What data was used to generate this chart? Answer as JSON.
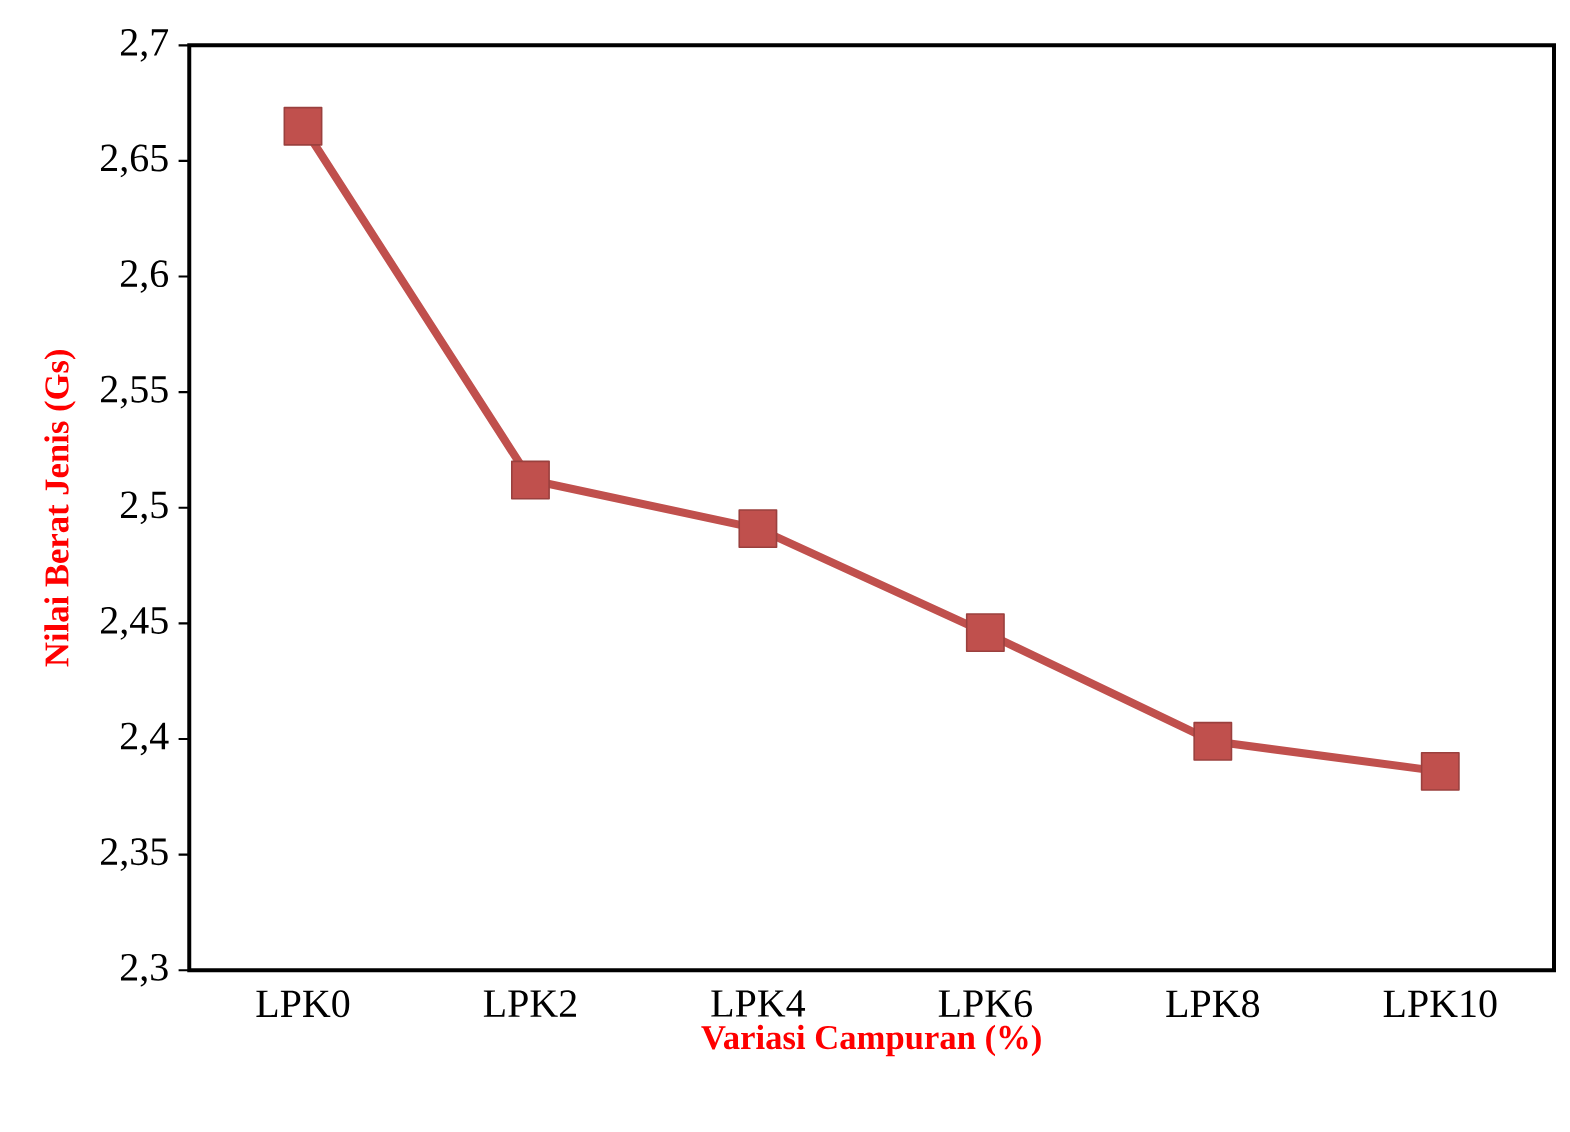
{
  "chart_data": {
    "type": "line",
    "xlabel": "Variasi Campuran (%)",
    "ylabel": "Nilai Berat Jenis (Gs)",
    "categories": [
      "LPK0",
      "LPK2",
      "LPK4",
      "LPK6",
      "LPK8",
      "LPK10"
    ],
    "values": [
      2.665,
      2.512,
      2.491,
      2.446,
      2.399,
      2.386
    ],
    "color": "#c0504d",
    "marker": "square",
    "ylim": [
      2.3,
      2.7
    ],
    "yticks": [
      {
        "value": 2.3,
        "label": "2,3"
      },
      {
        "value": 2.35,
        "label": "2,35"
      },
      {
        "value": 2.4,
        "label": "2,4"
      },
      {
        "value": 2.45,
        "label": "2,45"
      },
      {
        "value": 2.5,
        "label": "2,5"
      },
      {
        "value": 2.55,
        "label": "2,55"
      },
      {
        "value": 2.6,
        "label": "2,6"
      },
      {
        "value": 2.65,
        "label": "2,65"
      },
      {
        "value": 2.7,
        "label": "2,7"
      }
    ]
  }
}
